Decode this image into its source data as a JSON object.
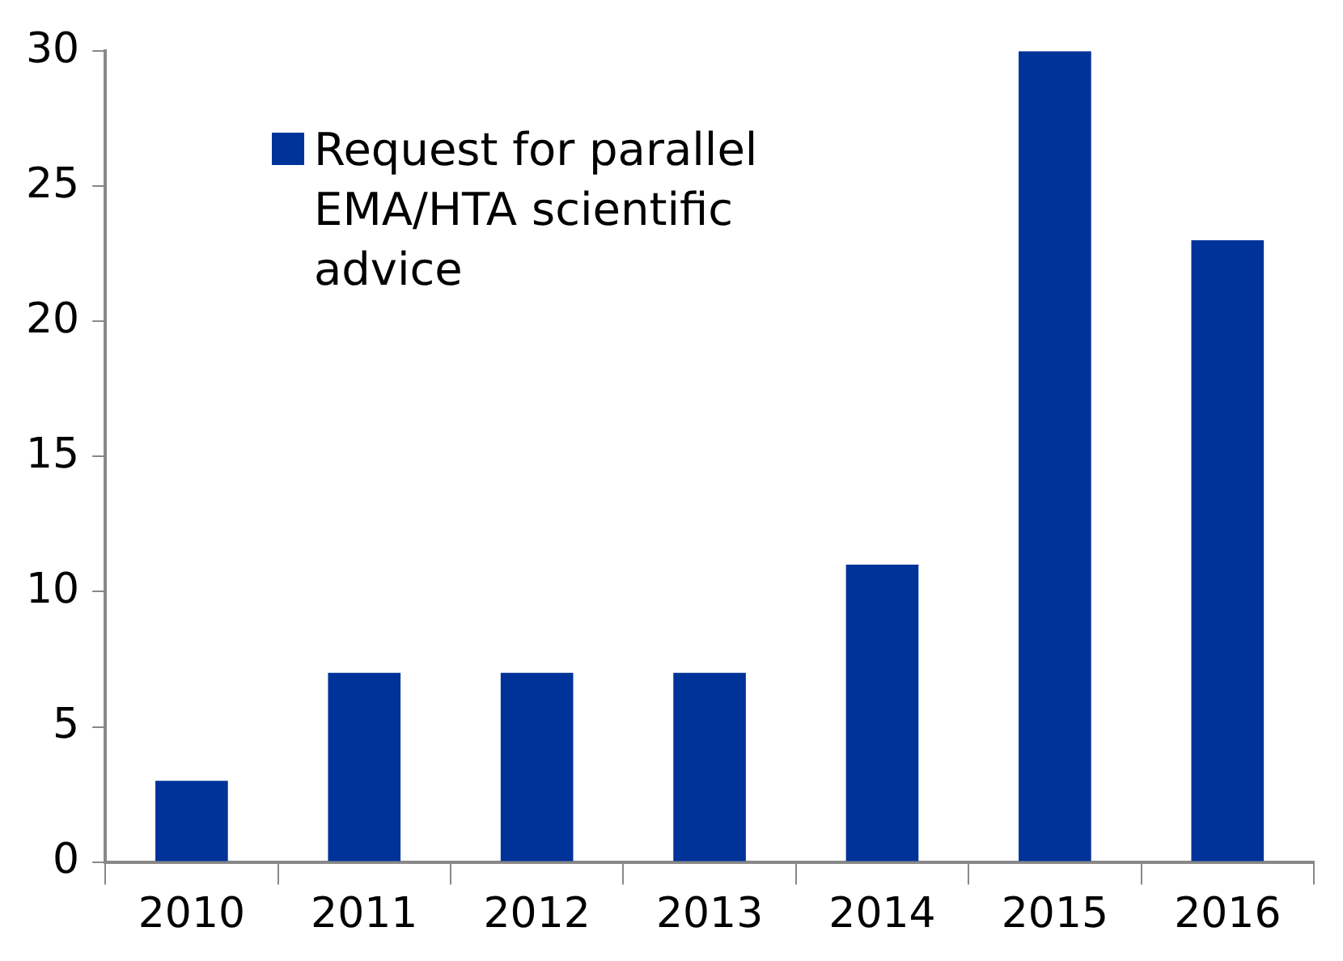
{
  "chart_data": {
    "type": "bar",
    "categories": [
      "2010",
      "2011",
      "2012",
      "2013",
      "2014",
      "2015",
      "2016"
    ],
    "series": [
      {
        "name": "Request for parallel EMA/HTA scientific advice",
        "color": "#003399",
        "values": [
          3,
          7,
          7,
          7,
          11,
          30,
          23
        ]
      }
    ],
    "ylim": [
      0,
      30
    ],
    "yticks": [
      0,
      5,
      10,
      15,
      20,
      25,
      30
    ],
    "grid": false,
    "legend": "top left"
  }
}
